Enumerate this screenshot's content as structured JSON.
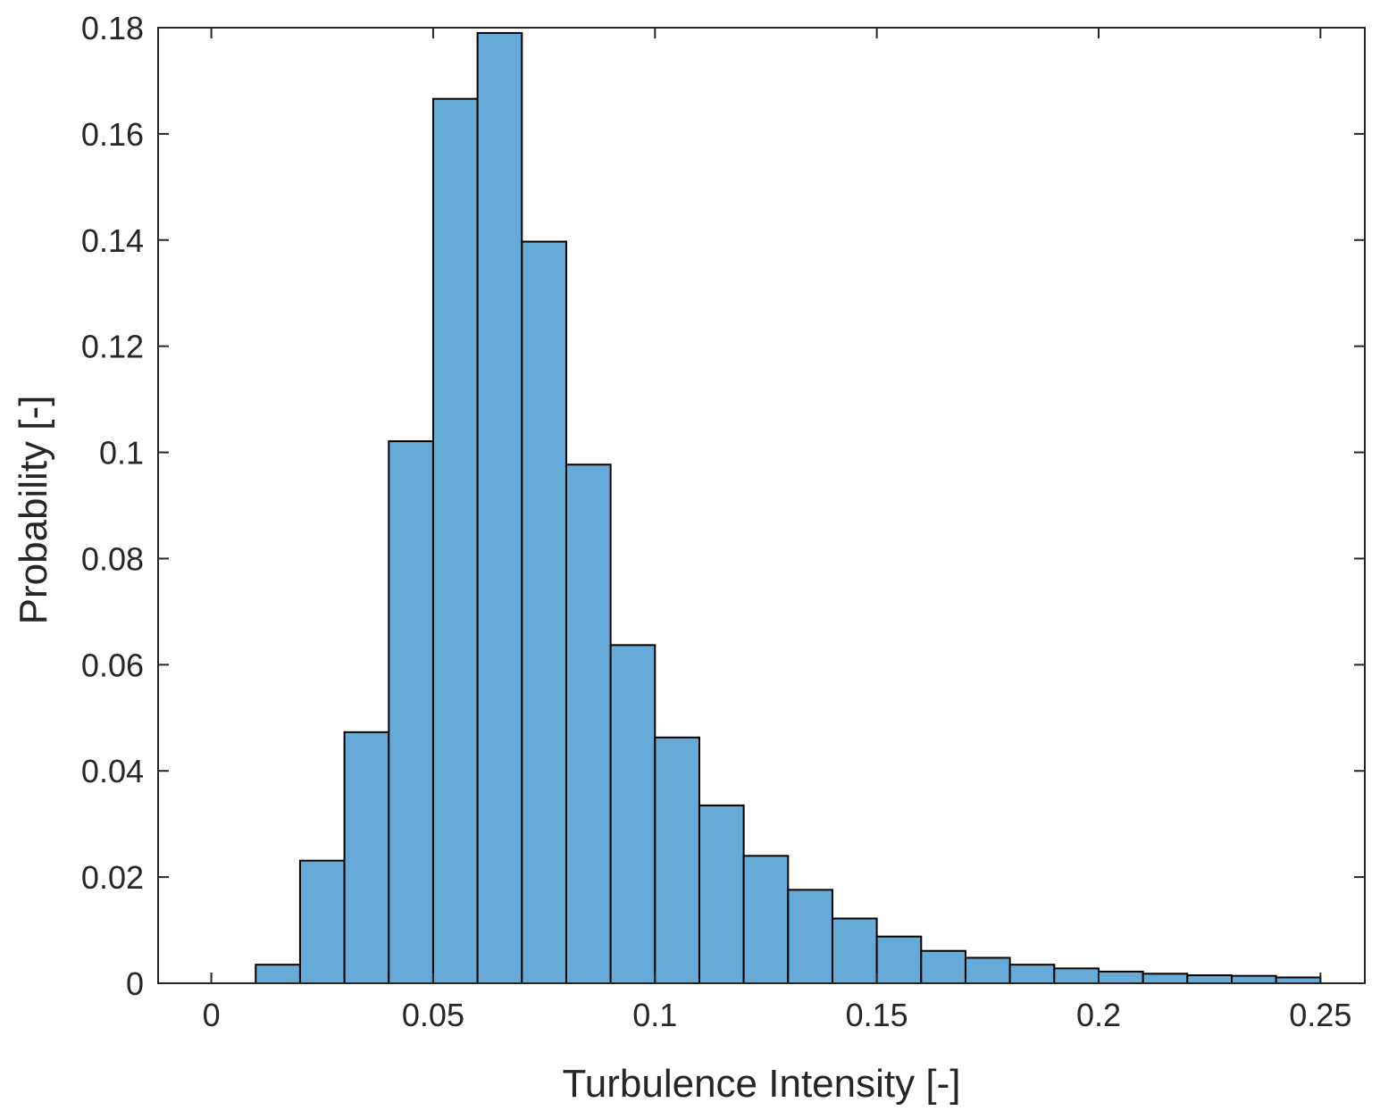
{
  "chart_data": {
    "type": "bar",
    "title": "",
    "xlabel": "Turbulence Intensity [-]",
    "ylabel": "Probability [-]",
    "xlim": [
      -0.012,
      0.26
    ],
    "ylim": [
      0,
      0.18
    ],
    "xticks": [
      0,
      0.05,
      0.1,
      0.15,
      0.2,
      0.25
    ],
    "xtick_labels": [
      "0",
      "0.05",
      "0.1",
      "0.15",
      "0.2",
      "0.25"
    ],
    "yticks": [
      0,
      0.02,
      0.04,
      0.06,
      0.08,
      0.1,
      0.12,
      0.14,
      0.16,
      0.18
    ],
    "ytick_labels": [
      "0",
      "0.02",
      "0.04",
      "0.06",
      "0.08",
      "0.1",
      "0.12",
      "0.14",
      "0.16",
      "0.18"
    ],
    "grid": false,
    "bar_color": "#66AAD7",
    "edge_color": "#000000",
    "bin_width": 0.01,
    "bins": [
      {
        "x0": 0.01,
        "x1": 0.02,
        "value": 0.0035
      },
      {
        "x0": 0.02,
        "x1": 0.03,
        "value": 0.0231
      },
      {
        "x0": 0.03,
        "x1": 0.04,
        "value": 0.0473
      },
      {
        "x0": 0.04,
        "x1": 0.05,
        "value": 0.1021
      },
      {
        "x0": 0.05,
        "x1": 0.06,
        "value": 0.1666
      },
      {
        "x0": 0.06,
        "x1": 0.07,
        "value": 0.179
      },
      {
        "x0": 0.07,
        "x1": 0.08,
        "value": 0.1397
      },
      {
        "x0": 0.08,
        "x1": 0.09,
        "value": 0.0977
      },
      {
        "x0": 0.09,
        "x1": 0.1,
        "value": 0.0637
      },
      {
        "x0": 0.1,
        "x1": 0.11,
        "value": 0.0463
      },
      {
        "x0": 0.11,
        "x1": 0.12,
        "value": 0.0335
      },
      {
        "x0": 0.12,
        "x1": 0.13,
        "value": 0.024
      },
      {
        "x0": 0.13,
        "x1": 0.14,
        "value": 0.0176
      },
      {
        "x0": 0.14,
        "x1": 0.15,
        "value": 0.0122
      },
      {
        "x0": 0.15,
        "x1": 0.16,
        "value": 0.0088
      },
      {
        "x0": 0.16,
        "x1": 0.17,
        "value": 0.0061
      },
      {
        "x0": 0.17,
        "x1": 0.18,
        "value": 0.0048
      },
      {
        "x0": 0.18,
        "x1": 0.19,
        "value": 0.0035
      },
      {
        "x0": 0.19,
        "x1": 0.2,
        "value": 0.0028
      },
      {
        "x0": 0.2,
        "x1": 0.21,
        "value": 0.0022
      },
      {
        "x0": 0.21,
        "x1": 0.22,
        "value": 0.0018
      },
      {
        "x0": 0.22,
        "x1": 0.23,
        "value": 0.0015
      },
      {
        "x0": 0.23,
        "x1": 0.24,
        "value": 0.0014
      },
      {
        "x0": 0.24,
        "x1": 0.25,
        "value": 0.0011
      }
    ]
  }
}
